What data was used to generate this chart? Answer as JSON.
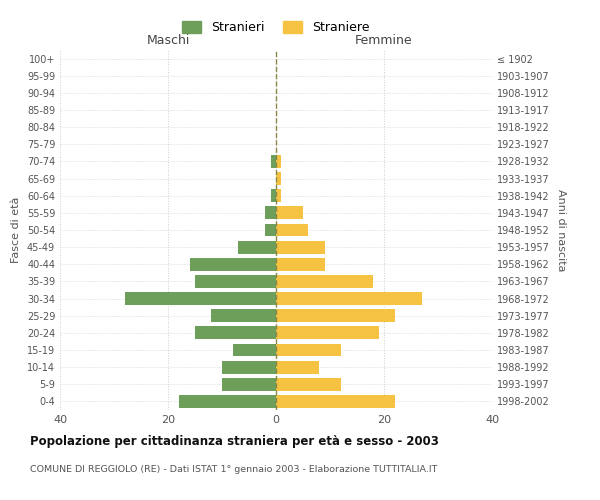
{
  "age_groups": [
    "0-4",
    "5-9",
    "10-14",
    "15-19",
    "20-24",
    "25-29",
    "30-34",
    "35-39",
    "40-44",
    "45-49",
    "50-54",
    "55-59",
    "60-64",
    "65-69",
    "70-74",
    "75-79",
    "80-84",
    "85-89",
    "90-94",
    "95-99",
    "100+"
  ],
  "birth_years": [
    "1998-2002",
    "1993-1997",
    "1988-1992",
    "1983-1987",
    "1978-1982",
    "1973-1977",
    "1968-1972",
    "1963-1967",
    "1958-1962",
    "1953-1957",
    "1948-1952",
    "1943-1947",
    "1938-1942",
    "1933-1937",
    "1928-1932",
    "1923-1927",
    "1918-1922",
    "1913-1917",
    "1908-1912",
    "1903-1907",
    "≤ 1902"
  ],
  "maschi": [
    18,
    10,
    10,
    8,
    15,
    12,
    28,
    15,
    16,
    7,
    2,
    2,
    1,
    0,
    1,
    0,
    0,
    0,
    0,
    0,
    0
  ],
  "femmine": [
    22,
    12,
    8,
    12,
    19,
    22,
    27,
    18,
    9,
    9,
    6,
    5,
    1,
    1,
    1,
    0,
    0,
    0,
    0,
    0,
    0
  ],
  "color_maschi": "#6d9e5a",
  "color_femmine": "#f5c242",
  "title": "Popolazione per cittadinanza straniera per età e sesso - 2003",
  "subtitle": "COMUNE DI REGGIOLO (RE) - Dati ISTAT 1° gennaio 2003 - Elaborazione TUTTITALIA.IT",
  "xlabel_left": "Maschi",
  "xlabel_right": "Femmine",
  "ylabel_left": "Fasce di età",
  "ylabel_right": "Anni di nascita",
  "legend_maschi": "Stranieri",
  "legend_femmine": "Straniere",
  "xlim": 40,
  "background_color": "#ffffff",
  "grid_color": "#cccccc"
}
